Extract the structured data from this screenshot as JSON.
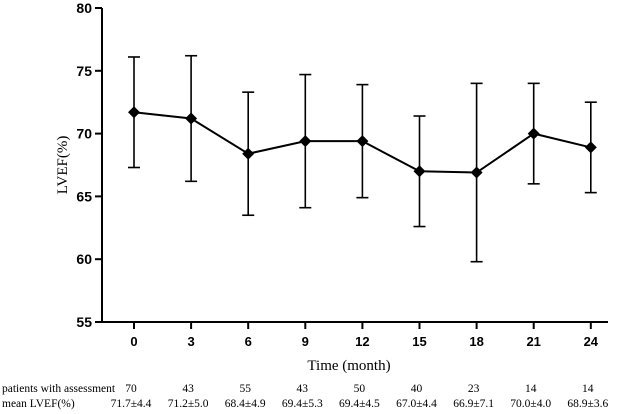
{
  "chart_data": {
    "type": "line",
    "xlabel": "Time (month)",
    "ylabel": "LVEF(%)",
    "ylim": [
      55,
      80
    ],
    "yticks": [
      55,
      60,
      65,
      70,
      75,
      80
    ],
    "categories": [
      "0",
      "3",
      "6",
      "9",
      "12",
      "15",
      "18",
      "21",
      "24"
    ],
    "series": [
      {
        "values": [
          71.7,
          71.2,
          68.4,
          69.4,
          69.4,
          67.0,
          66.9,
          70.0,
          68.9
        ],
        "error_lower": [
          67.3,
          66.2,
          63.5,
          64.1,
          64.9,
          62.6,
          59.8,
          66.0,
          65.3
        ],
        "error_upper": [
          76.1,
          76.2,
          73.3,
          74.7,
          73.9,
          71.4,
          74.0,
          74.0,
          72.5
        ]
      }
    ],
    "grid": false,
    "marker": "diamond",
    "color": "#000000",
    "table": {
      "rows": [
        {
          "label": "patients with assessment",
          "values": [
            "70",
            "43",
            "55",
            "43",
            "50",
            "40",
            "23",
            "14",
            "14"
          ]
        },
        {
          "label": "mean LVEF(%)",
          "values": [
            "71.7±4.4",
            "71.2±5.0",
            "68.4±4.9",
            "69.4±5.3",
            "69.4±4.5",
            "67.0±4.4",
            "66.9±7.1",
            "70.0±4.0",
            "68.9±3.6"
          ]
        }
      ]
    }
  }
}
